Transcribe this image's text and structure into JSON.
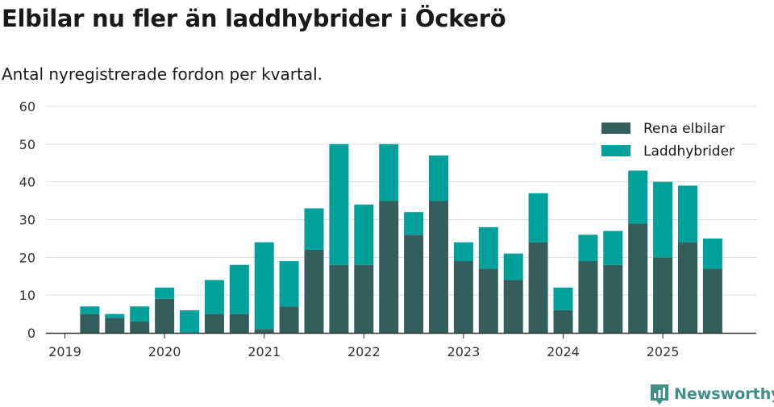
{
  "title": "Elbilar nu fler än laddhybrider i Öckerö",
  "subtitle": "Antal nyregistrerade fordon per kvartal.",
  "brand": "Newsworthy",
  "colors": {
    "rena": "#335e5b",
    "ladd": "#00a19a",
    "grid": "#dddddd",
    "axis": "#333333",
    "brand": "#3e8f86"
  },
  "chart_data": {
    "type": "bar",
    "stacked": true,
    "title": "Elbilar nu fler än laddhybrider i Öckerö",
    "subtitle": "Antal nyregistrerade fordon per kvartal.",
    "xlabel": "",
    "ylabel": "",
    "ylim": [
      0,
      60
    ],
    "yticks": [
      0,
      10,
      20,
      30,
      40,
      50,
      60
    ],
    "xtick_labels": [
      "2019",
      "2020",
      "2021",
      "2022",
      "2023",
      "2024",
      "2025"
    ],
    "legend_position": "top-right",
    "categories": [
      "2019 Q2",
      "2019 Q3",
      "2019 Q4",
      "2020 Q1",
      "2020 Q2",
      "2020 Q3",
      "2020 Q4",
      "2021 Q1",
      "2021 Q2",
      "2021 Q3",
      "2021 Q4",
      "2022 Q1",
      "2022 Q2",
      "2022 Q3",
      "2022 Q4",
      "2023 Q1",
      "2023 Q2",
      "2023 Q3",
      "2023 Q4",
      "2024 Q1",
      "2024 Q2",
      "2024 Q3",
      "2024 Q4",
      "2025 Q1",
      "2025 Q2",
      "2025 Q3"
    ],
    "series": [
      {
        "name": "Rena elbilar",
        "values": [
          5,
          4,
          3,
          9,
          0,
          5,
          5,
          1,
          7,
          22,
          18,
          18,
          35,
          26,
          35,
          19,
          17,
          14,
          24,
          6,
          19,
          18,
          29,
          20,
          24,
          17
        ]
      },
      {
        "name": "Laddhybrider",
        "values": [
          2,
          1,
          4,
          3,
          6,
          9,
          13,
          23,
          12,
          11,
          32,
          16,
          15,
          6,
          12,
          5,
          11,
          7,
          13,
          6,
          7,
          9,
          14,
          20,
          15,
          8
        ]
      }
    ]
  }
}
